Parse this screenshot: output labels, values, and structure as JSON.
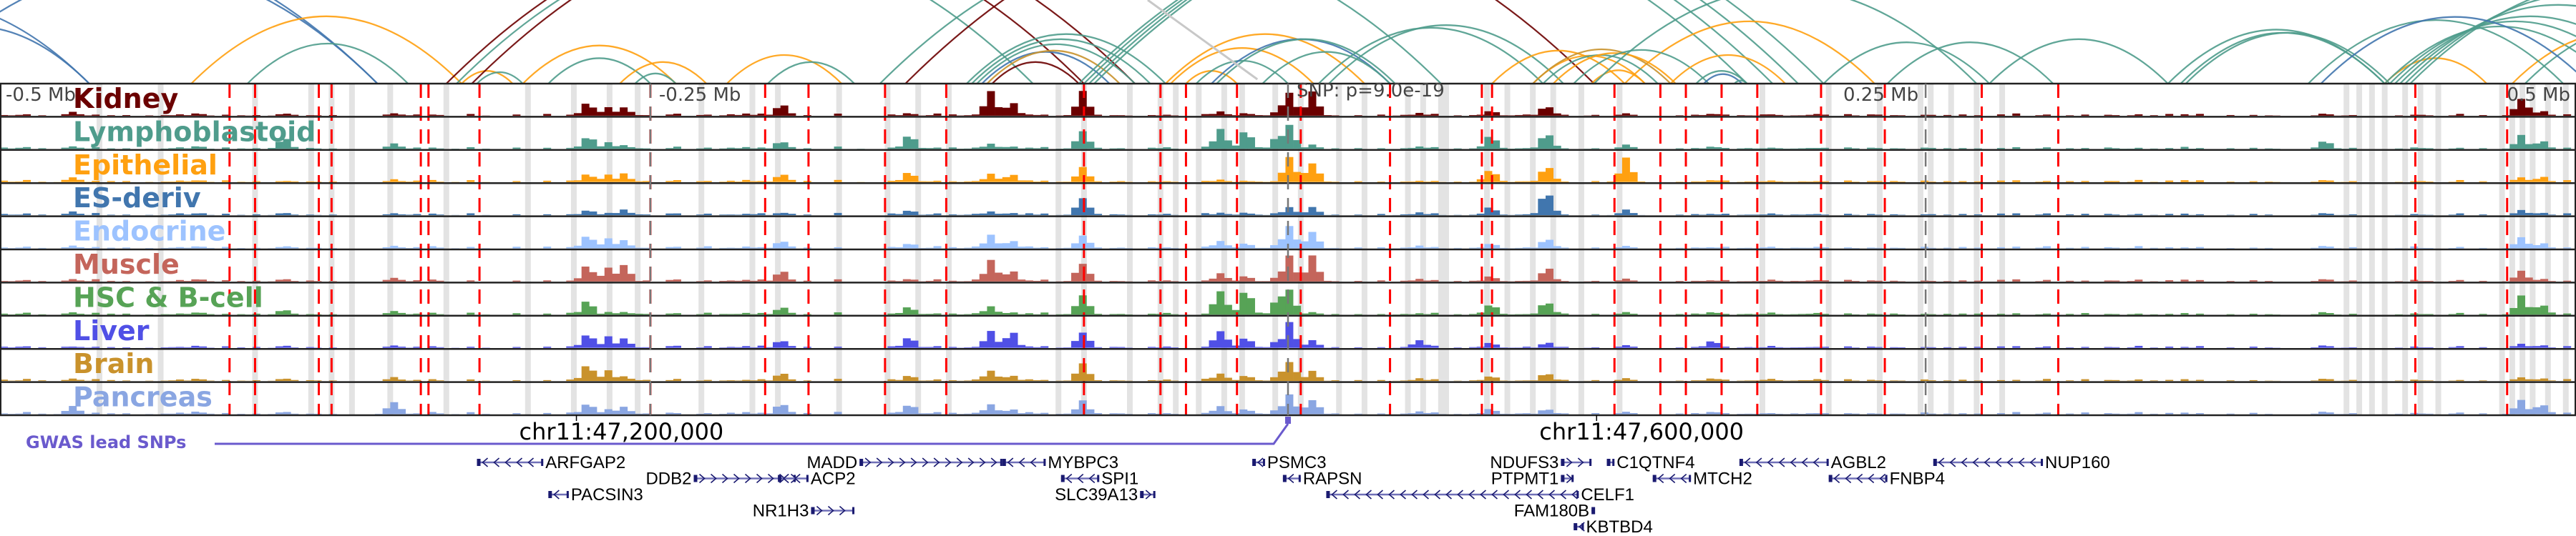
{
  "chart_data": {
    "type": "area",
    "title": "",
    "x_unit": "kb from lead SNP",
    "xlim": [
      -505,
      505
    ],
    "axis_ticks": [
      {
        "pos": -500,
        "label": "-0.5 Mb"
      },
      {
        "pos": -250,
        "label": "-0.25 Mb"
      },
      {
        "pos": 250,
        "label": "0.25 Mb"
      },
      {
        "pos": 500,
        "label": "0.5 Mb"
      }
    ],
    "snp_label": "SNP: p=9.0e-19",
    "snp_pos": 0,
    "coordinate_ticks": [
      {
        "pos": -279,
        "label": "chr11:47,200,000"
      },
      {
        "pos": 121,
        "label": "chr11:47,600,000"
      }
    ],
    "gwas_label": "GWAS lead SNPs",
    "tracks": [
      {
        "name": "Kidney",
        "color": "#6b0000"
      },
      {
        "name": "Lymphoblastoid",
        "color": "#4f9c8c"
      },
      {
        "name": "Epithelial",
        "color": "#ffa010"
      },
      {
        "name": "ES-deriv",
        "color": "#4176ae"
      },
      {
        "name": "Endocrine",
        "color": "#9dc3ff"
      },
      {
        "name": "Muscle",
        "color": "#c4655b"
      },
      {
        "name": "HSC & B-cell",
        "color": "#57a356"
      },
      {
        "name": "Liver",
        "color": "#5050e6"
      },
      {
        "name": "Brain",
        "color": "#c9922c"
      },
      {
        "name": "Pancreas",
        "color": "#8aa6e2"
      }
    ],
    "peaks": [
      {
        "pos": -478,
        "h": [
          0.15,
          0.1,
          0.2,
          0.15,
          0.1,
          0.1,
          0.1,
          0.05,
          0.1,
          0.3
        ]
      },
      {
        "pos": -429,
        "h": [
          0.1,
          0.1,
          0.05,
          0.08,
          0.08,
          0.1,
          0.1,
          0.08,
          0.1,
          0.1
        ]
      },
      {
        "pos": -395,
        "h": [
          0.08,
          0.4,
          0.05,
          0.1,
          0.08,
          0.1,
          0.2,
          0.08,
          0.1,
          0.1
        ]
      },
      {
        "pos": -352,
        "h": [
          0.1,
          0.2,
          0.1,
          0.08,
          0.1,
          0.15,
          0.15,
          0.1,
          0.15,
          0.5
        ]
      },
      {
        "pos": -276,
        "h": [
          0.5,
          0.5,
          0.3,
          0.2,
          0.5,
          0.6,
          0.5,
          0.5,
          0.6,
          0.4
        ]
      },
      {
        "pos": -268,
        "h": [
          0.35,
          0.25,
          0.3,
          0.08,
          0.4,
          0.6,
          0.1,
          0.4,
          0.4,
          0.2
        ]
      },
      {
        "pos": -262,
        "h": [
          0.35,
          0.15,
          0.3,
          0.2,
          0.3,
          0.7,
          0.1,
          0.4,
          0.2,
          0.3
        ]
      },
      {
        "pos": -200,
        "h": [
          0.45,
          0.3,
          0.3,
          0.1,
          0.3,
          0.4,
          0.3,
          0.3,
          0.3,
          0.4
        ]
      },
      {
        "pos": -150,
        "h": [
          0.1,
          0.5,
          0.35,
          0.2,
          0.2,
          0.1,
          0.3,
          0.4,
          0.2,
          0.4
        ]
      },
      {
        "pos": -118,
        "h": [
          0.9,
          0.2,
          0.3,
          0.15,
          0.5,
          0.8,
          0.3,
          0.6,
          0.4,
          0.4
        ]
      },
      {
        "pos": -110,
        "h": [
          0.5,
          0.1,
          0.3,
          0.1,
          0.3,
          0.4,
          0.1,
          0.6,
          0.2,
          0.2
        ]
      },
      {
        "pos": -82,
        "h": [
          0.9,
          0.7,
          0.55,
          0.65,
          0.5,
          0.75,
          0.8,
          0.6,
          0.7,
          0.5
        ]
      },
      {
        "pos": -28,
        "h": [
          0.15,
          0.8,
          0.1,
          0.1,
          0.3,
          0.3,
          0.9,
          0.7,
          0.3,
          0.3
        ]
      },
      {
        "pos": -18,
        "h": [
          0.1,
          0.7,
          0.05,
          0.1,
          0.2,
          0.2,
          0.9,
          0.4,
          0.2,
          0.2
        ]
      },
      {
        "pos": -5,
        "h": [
          0.2,
          0.6,
          0.05,
          0.1,
          0.2,
          0.2,
          0.7,
          0.3,
          0.2,
          0.2
        ]
      },
      {
        "pos": -1,
        "h": [
          0.9,
          0.9,
          0.9,
          0.3,
          0.8,
          0.9,
          0.9,
          0.9,
          0.8,
          0.7
        ]
      },
      {
        "pos": 8,
        "h": [
          0.85,
          0.15,
          0.8,
          0.3,
          0.6,
          0.95,
          0.1,
          0.3,
          0.4,
          0.6
        ]
      },
      {
        "pos": 50,
        "h": [
          0.1,
          0.1,
          0.05,
          0.1,
          0.1,
          0.1,
          0.05,
          0.3,
          0.1,
          0.1
        ]
      },
      {
        "pos": 100,
        "h": [
          0.4,
          0.6,
          0.6,
          0.9,
          0.4,
          0.5,
          0.5,
          0.2,
          0.3,
          0.2
        ]
      },
      {
        "pos": 131,
        "h": [
          0.1,
          0.15,
          0.85,
          0.2,
          0.1,
          0.1,
          0.1,
          0.1,
          0.1,
          0.1
        ]
      },
      {
        "pos": 78,
        "h": [
          0.2,
          0.5,
          0.5,
          0.3,
          0.2,
          0.2,
          0.4,
          0.2,
          0.2,
          0.2
        ]
      },
      {
        "pos": 165,
        "h": [
          0.08,
          0.1,
          0.08,
          0.05,
          0.05,
          0.05,
          0.1,
          0.3,
          0.1,
          0.1
        ]
      },
      {
        "pos": 405,
        "h": [
          0.08,
          0.3,
          0.08,
          0.08,
          0.1,
          0.1,
          0.1,
          0.1,
          0.1,
          0.1
        ]
      },
      {
        "pos": 482,
        "h": [
          0.7,
          0.5,
          0.2,
          0.2,
          0.4,
          0.4,
          0.7,
          0.15,
          0.15,
          0.5
        ]
      },
      {
        "pos": 490,
        "h": [
          0.2,
          0.3,
          0.2,
          0.1,
          0.2,
          0.1,
          0.4,
          0.1,
          0.1,
          0.4
        ]
      }
    ],
    "red_markers": [
      -415,
      -405,
      -380,
      -375,
      -340,
      -337,
      -317,
      -250,
      -205,
      -188,
      -158,
      -134,
      -80,
      -50,
      -40,
      -20,
      5,
      40,
      76,
      80,
      128,
      146,
      156,
      170,
      184,
      209,
      234,
      272,
      302,
      442,
      478
    ],
    "grey_highlights": [
      -466,
      -442,
      -405,
      -383,
      -375,
      -367,
      -352,
      -330,
      -298,
      -280,
      -266,
      -255,
      -230,
      -210,
      -200,
      -176,
      -157,
      -145,
      -133,
      -90,
      -80,
      -62,
      -50,
      -44,
      -35,
      -25,
      -18,
      -5,
      5,
      20,
      30,
      47,
      53,
      60,
      62,
      78,
      86,
      96,
      104,
      115,
      130,
      186,
      212,
      232,
      248,
      252,
      260,
      270,
      280,
      415,
      420,
      425,
      430,
      438,
      444,
      451,
      476,
      480,
      484,
      488,
      494,
      501
    ]
  },
  "genes": [
    {
      "name": "ARFGAP2",
      "start": -318,
      "end": -292,
      "strand": "-",
      "row": 0,
      "label_side": "right"
    },
    {
      "name": "DDB2",
      "start": -233,
      "end": -193,
      "strand": "+",
      "row": 1,
      "label_side": "left"
    },
    {
      "name": "ACP2",
      "start": -200,
      "end": -188,
      "strand": "-",
      "row": 1,
      "label_side": "right"
    },
    {
      "name": "PACSIN3",
      "start": -290,
      "end": -282,
      "strand": "-",
      "row": 2,
      "label_side": "right"
    },
    {
      "name": "NR1H3",
      "start": -187,
      "end": -170,
      "strand": "+",
      "row": 3,
      "label_side": "left"
    },
    {
      "name": "MADD",
      "start": -168,
      "end": -112,
      "strand": "+",
      "row": 0,
      "label_side": "left"
    },
    {
      "name": "MYBPC3",
      "start": -112,
      "end": -95,
      "strand": "-",
      "row": 0,
      "label_side": "right"
    },
    {
      "name": "SPI1",
      "start": -89,
      "end": -74,
      "strand": "-",
      "row": 1,
      "label_side": "right"
    },
    {
      "name": "SLC39A13",
      "start": -58,
      "end": -52,
      "strand": "+",
      "row": 2,
      "label_side": "left"
    },
    {
      "name": "PSMC3",
      "start": -14,
      "end": -9,
      "strand": "-",
      "row": 0,
      "label_side": "right"
    },
    {
      "name": "RAPSN",
      "start": -2,
      "end": 5,
      "strand": "-",
      "row": 1,
      "label_side": "right"
    },
    {
      "name": "CELF1",
      "start": 15,
      "end": 114,
      "strand": "-",
      "row": 2,
      "label_side": "right"
    },
    {
      "name": "NDUFS3",
      "start": 107,
      "end": 119,
      "strand": "+",
      "row": 0,
      "label_side": "left"
    },
    {
      "name": "PTPMT1",
      "start": 107,
      "end": 112,
      "strand": "+",
      "row": 1,
      "label_side": "left"
    },
    {
      "name": "C1QTNF4",
      "start": 125,
      "end": 128,
      "strand": "-",
      "row": 0,
      "label_side": "right"
    },
    {
      "name": "FAM180B",
      "start": 119,
      "end": 120,
      "strand": "+",
      "row": 3,
      "label_side": "left"
    },
    {
      "name": "KBTBD4",
      "start": 112,
      "end": 116,
      "strand": "-",
      "row": 4,
      "label_side": "right"
    },
    {
      "name": "MTCH2",
      "start": 143,
      "end": 158,
      "strand": "-",
      "row": 1,
      "label_side": "right"
    },
    {
      "name": "AGBL2",
      "start": 177,
      "end": 212,
      "strand": "-",
      "row": 0,
      "label_side": "right"
    },
    {
      "name": "FNBP4",
      "start": 212,
      "end": 235,
      "strand": "-",
      "row": 1,
      "label_side": "right"
    },
    {
      "name": "NUP160",
      "start": 253,
      "end": 296,
      "strand": "-",
      "row": 0,
      "label_side": "right"
    }
  ],
  "arc_colors": {
    "blue": "#4176ae",
    "teal": "#4f9c8c",
    "orange": "#ffa010",
    "darkred": "#6b0000",
    "gold": "#c9922c",
    "grey": "#c8c8c8"
  },
  "arcs": [
    {
      "a": -560,
      "b": -470,
      "c": "blue"
    },
    {
      "a": -600,
      "b": -470,
      "c": "blue"
    },
    {
      "a": -540,
      "b": -357,
      "c": "blue"
    },
    {
      "a": -580,
      "b": -357,
      "c": "blue"
    },
    {
      "a": -430,
      "b": -324,
      "c": "orange"
    },
    {
      "a": -408,
      "b": -345,
      "c": "teal"
    },
    {
      "a": -324,
      "b": -304,
      "c": "orange"
    },
    {
      "a": -318,
      "b": -300,
      "c": "teal"
    },
    {
      "a": -330,
      "b": -80,
      "c": "darkred"
    },
    {
      "a": -326,
      "b": -100,
      "c": "teal"
    },
    {
      "a": -320,
      "b": -60,
      "c": "darkred"
    },
    {
      "a": -300,
      "b": -240,
      "c": "orange"
    },
    {
      "a": -290,
      "b": -250,
      "c": "teal"
    },
    {
      "a": -262,
      "b": -228,
      "c": "orange"
    },
    {
      "a": -256,
      "b": -240,
      "c": "teal"
    },
    {
      "a": -220,
      "b": -175,
      "c": "orange"
    },
    {
      "a": -204,
      "b": -170,
      "c": "teal"
    },
    {
      "a": -126,
      "b": -48,
      "c": "teal"
    },
    {
      "a": -124,
      "b": -54,
      "c": "teal"
    },
    {
      "a": -122,
      "b": -60,
      "c": "teal"
    },
    {
      "a": -116,
      "b": -82,
      "c": "darkred"
    },
    {
      "a": -120,
      "b": -70,
      "c": "blue"
    },
    {
      "a": -118,
      "b": -66,
      "c": "gold"
    },
    {
      "a": -82,
      "b": 180,
      "c": "teal"
    },
    {
      "a": -80,
      "b": 190,
      "c": "teal"
    },
    {
      "a": -78,
      "b": 200,
      "c": "teal"
    },
    {
      "a": -76,
      "b": 210,
      "c": "teal"
    },
    {
      "a": -48,
      "b": 30,
      "c": "orange"
    },
    {
      "a": -46,
      "b": 10,
      "c": "orange"
    },
    {
      "a": -40,
      "b": -20,
      "c": "orange"
    },
    {
      "a": -36,
      "b": 0,
      "c": "teal"
    },
    {
      "a": -30,
      "b": 40,
      "c": "blue"
    },
    {
      "a": -28,
      "b": 42,
      "c": "teal"
    },
    {
      "a": -10,
      "b": 40,
      "c": "teal"
    },
    {
      "a": -150,
      "b": 120,
      "c": "darkred"
    },
    {
      "a": -160,
      "b": 60,
      "c": "teal"
    },
    {
      "a": 12,
      "b": 100,
      "c": "teal"
    },
    {
      "a": 16,
      "b": 108,
      "c": "teal"
    },
    {
      "a": 80,
      "b": 132,
      "c": "orange"
    },
    {
      "a": 132,
      "b": 230,
      "c": "orange"
    },
    {
      "a": 96,
      "b": 140,
      "c": "orange"
    },
    {
      "a": 96,
      "b": 150,
      "c": "gold"
    },
    {
      "a": 100,
      "b": 145,
      "c": "teal"
    },
    {
      "a": 104,
      "b": 152,
      "c": "orange"
    },
    {
      "a": 112,
      "b": 165,
      "c": "teal"
    },
    {
      "a": 119,
      "b": 140,
      "c": "orange"
    },
    {
      "a": 160,
      "b": 180,
      "c": "teal"
    },
    {
      "a": 163,
      "b": 178,
      "c": "blue"
    },
    {
      "a": 120,
      "b": 270,
      "c": "teal"
    },
    {
      "a": 150,
      "b": 195,
      "c": "orange"
    },
    {
      "a": 175,
      "b": 180,
      "c": "teal"
    },
    {
      "a": 210,
      "b": 275,
      "c": "teal"
    },
    {
      "a": 275,
      "b": 345,
      "c": "teal"
    },
    {
      "a": 235,
      "b": 300,
      "c": "teal"
    },
    {
      "a": 345,
      "b": 430,
      "c": "teal"
    },
    {
      "a": 350,
      "b": 430,
      "c": "teal"
    },
    {
      "a": 352,
      "b": 432,
      "c": "teal"
    },
    {
      "a": 430,
      "b": 470,
      "c": "orange"
    },
    {
      "a": 430,
      "b": 520,
      "c": "teal"
    },
    {
      "a": 432,
      "b": 530,
      "c": "teal"
    },
    {
      "a": 434,
      "b": 540,
      "c": "teal"
    },
    {
      "a": 436,
      "b": 560,
      "c": "teal"
    },
    {
      "a": 438,
      "b": 580,
      "c": "teal"
    },
    {
      "a": 440,
      "b": 600,
      "c": "teal"
    },
    {
      "a": 480,
      "b": 560,
      "c": "orange"
    },
    {
      "a": 485,
      "b": 580,
      "c": "teal"
    },
    {
      "a": 400,
      "b": 500,
      "c": "teal"
    },
    {
      "a": 405,
      "b": 510,
      "c": "blue"
    }
  ]
}
